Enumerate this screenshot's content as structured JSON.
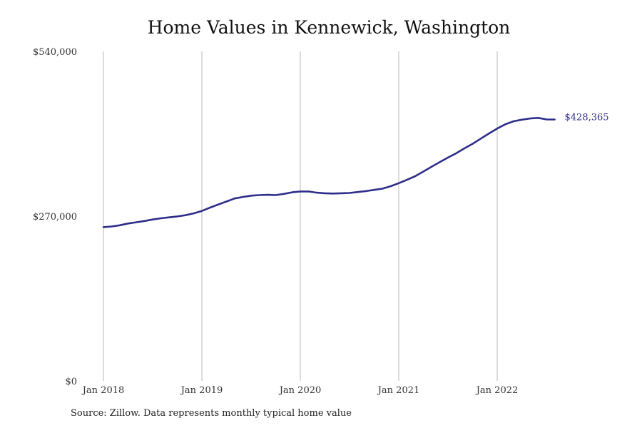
{
  "title": "Home Values in Kennewick, Washington",
  "source": "Source: Zillow. Data represents monthly typical home value",
  "chart_data": {
    "type": "line",
    "title": "Home Values in Kennewick, Washington",
    "ylim": [
      0,
      540000
    ],
    "y_ticks": [
      {
        "value": 0,
        "label": "$0"
      },
      {
        "value": 270000,
        "label": "$270,000"
      },
      {
        "value": 540000,
        "label": "$540,000"
      }
    ],
    "x_ticks": [
      {
        "value": "2018-01",
        "label": "Jan 2018"
      },
      {
        "value": "2019-01",
        "label": "Jan 2019"
      },
      {
        "value": "2020-01",
        "label": "Jan 2020"
      },
      {
        "value": "2021-01",
        "label": "Jan 2021"
      },
      {
        "value": "2022-01",
        "label": "Jan 2022"
      }
    ],
    "xlim": [
      "2018-01",
      "2022-09"
    ],
    "grid": "vertical",
    "color": "#2e2e8a",
    "end_label": "$428,365",
    "series": [
      {
        "x": [
          "2018-01",
          "2018-02",
          "2018-03",
          "2018-04",
          "2018-05",
          "2018-06",
          "2018-07",
          "2018-08",
          "2018-09",
          "2018-10",
          "2018-11",
          "2018-12",
          "2019-01",
          "2019-02",
          "2019-03",
          "2019-04",
          "2019-05",
          "2019-06",
          "2019-07",
          "2019-08",
          "2019-09",
          "2019-10",
          "2019-11",
          "2019-12",
          "2020-01",
          "2020-02",
          "2020-03",
          "2020-04",
          "2020-05",
          "2020-06",
          "2020-07",
          "2020-08",
          "2020-09",
          "2020-10",
          "2020-11",
          "2020-12",
          "2021-01",
          "2021-02",
          "2021-03",
          "2021-04",
          "2021-05",
          "2021-06",
          "2021-07",
          "2021-08",
          "2021-09",
          "2021-10",
          "2021-11",
          "2021-12",
          "2022-01",
          "2022-02",
          "2022-03",
          "2022-04",
          "2022-05",
          "2022-06",
          "2022-07",
          "2022-08"
        ],
        "y": [
          252000,
          253000,
          255000,
          258000,
          260000,
          262000,
          264500,
          266500,
          268000,
          269500,
          271500,
          274500,
          278500,
          284000,
          289000,
          294000,
          299000,
          301500,
          303500,
          304500,
          305000,
          304500,
          306500,
          309000,
          310500,
          310500,
          308500,
          307500,
          307000,
          307500,
          308000,
          309500,
          311000,
          313000,
          315000,
          319000,
          324000,
          329500,
          335500,
          343000,
          351000,
          358500,
          366000,
          373000,
          381000,
          388500,
          397000,
          405500,
          413500,
          420500,
          425500,
          428000,
          430000,
          431000,
          428500,
          428365
        ]
      }
    ]
  }
}
